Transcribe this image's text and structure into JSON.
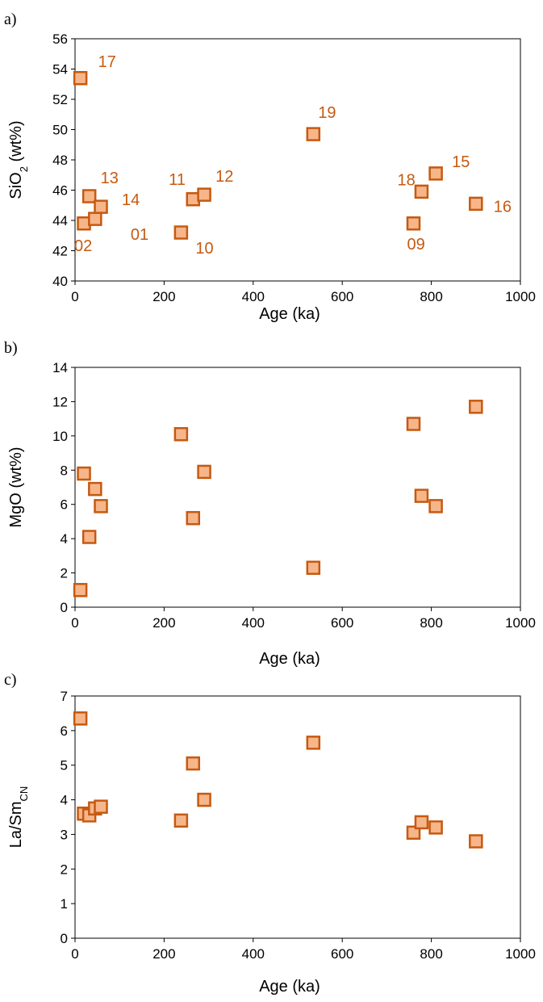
{
  "colors": {
    "marker_fill": "#F7B58A",
    "marker_stroke": "#C55A11",
    "label": "#C55A11",
    "axis": "#000000"
  },
  "chart_data": [
    {
      "type": "scatter",
      "panel_letter": "a)",
      "ylabel_main": "SiO",
      "ylabel_sub": "2",
      "ylabel_tail": " (wt%)",
      "xlabel": "Age (ka)",
      "xlim": [
        0,
        1000
      ],
      "ylim": [
        40,
        56
      ],
      "xticks": [
        "0",
        "200",
        "400",
        "600",
        "800",
        "1000"
      ],
      "yticks": [
        "40",
        "42",
        "44",
        "46",
        "48",
        "50",
        "52",
        "54",
        "56"
      ],
      "grid": false,
      "points": [
        {
          "x": 12,
          "y": 53.4,
          "label": "17"
        },
        {
          "x": 20,
          "y": 43.8,
          "label": "02"
        },
        {
          "x": 32,
          "y": 45.6,
          "label": "13"
        },
        {
          "x": 45,
          "y": 44.1,
          "label": "01"
        },
        {
          "x": 58,
          "y": 44.9,
          "label": "14"
        },
        {
          "x": 238,
          "y": 43.2,
          "label": "10"
        },
        {
          "x": 265,
          "y": 45.4,
          "label": "11"
        },
        {
          "x": 290,
          "y": 45.7,
          "label": "12"
        },
        {
          "x": 535,
          "y": 49.7,
          "label": "19"
        },
        {
          "x": 760,
          "y": 43.8,
          "label": "09"
        },
        {
          "x": 778,
          "y": 45.9,
          "label": "18"
        },
        {
          "x": 810,
          "y": 47.1,
          "label": "15"
        },
        {
          "x": 900,
          "y": 45.1,
          "label": "16"
        }
      ]
    },
    {
      "type": "scatter",
      "panel_letter": "b)",
      "ylabel_main": "MgO (wt%)",
      "ylabel_sub": "",
      "ylabel_tail": "",
      "xlabel": "Age (ka)",
      "xlim": [
        0,
        1000
      ],
      "ylim": [
        0,
        14
      ],
      "xticks": [
        "0",
        "200",
        "400",
        "600",
        "800",
        "1000"
      ],
      "yticks": [
        "0",
        "2",
        "4",
        "6",
        "8",
        "10",
        "12",
        "14"
      ],
      "grid": false,
      "points": [
        {
          "x": 12,
          "y": 1.0
        },
        {
          "x": 20,
          "y": 7.8
        },
        {
          "x": 32,
          "y": 4.1
        },
        {
          "x": 45,
          "y": 6.9
        },
        {
          "x": 58,
          "y": 5.9
        },
        {
          "x": 238,
          "y": 10.1
        },
        {
          "x": 265,
          "y": 5.2
        },
        {
          "x": 290,
          "y": 7.9
        },
        {
          "x": 535,
          "y": 2.3
        },
        {
          "x": 760,
          "y": 10.7
        },
        {
          "x": 778,
          "y": 6.5
        },
        {
          "x": 810,
          "y": 5.9
        },
        {
          "x": 900,
          "y": 11.7
        }
      ]
    },
    {
      "type": "scatter",
      "panel_letter": "c)",
      "ylabel_main": "La/Sm",
      "ylabel_sub": "CN",
      "ylabel_tail": "",
      "xlabel": "Age (ka)",
      "xlim": [
        0,
        1000
      ],
      "ylim": [
        0,
        7
      ],
      "xticks": [
        "0",
        "200",
        "400",
        "600",
        "800",
        "1000"
      ],
      "yticks": [
        "0",
        "1",
        "2",
        "3",
        "4",
        "5",
        "6",
        "7"
      ],
      "grid": false,
      "points": [
        {
          "x": 12,
          "y": 6.35
        },
        {
          "x": 20,
          "y": 3.6
        },
        {
          "x": 32,
          "y": 3.55
        },
        {
          "x": 45,
          "y": 3.75
        },
        {
          "x": 58,
          "y": 3.8
        },
        {
          "x": 238,
          "y": 3.4
        },
        {
          "x": 265,
          "y": 5.05
        },
        {
          "x": 290,
          "y": 4.0
        },
        {
          "x": 535,
          "y": 5.65
        },
        {
          "x": 760,
          "y": 3.05
        },
        {
          "x": 778,
          "y": 3.35
        },
        {
          "x": 810,
          "y": 3.2
        },
        {
          "x": 900,
          "y": 2.8
        }
      ]
    }
  ]
}
